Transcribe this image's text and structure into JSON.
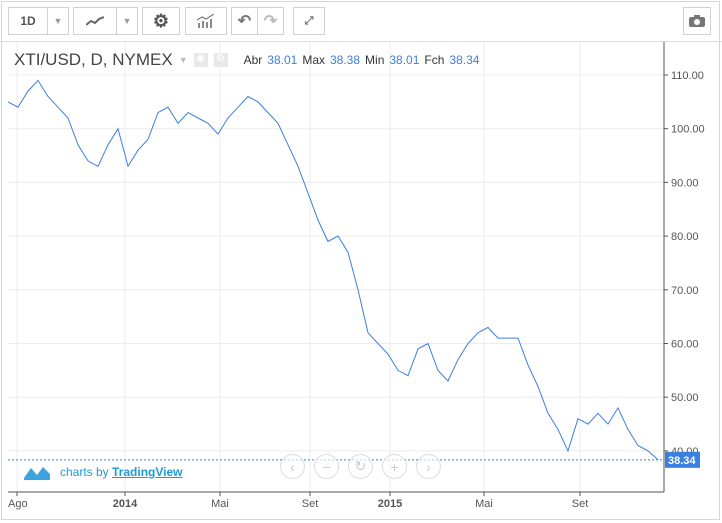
{
  "toolbar": {
    "interval": "1D"
  },
  "header": {
    "symbol": "XTI/USD, D, NYMEX",
    "open_label": "Abr",
    "open": "38.01",
    "high_label": "Max",
    "high": "38.38",
    "low_label": "Min",
    "low": "38.01",
    "close_label": "Fch",
    "close": "38.34"
  },
  "branding": {
    "prefix": "charts by",
    "name": "TradingView"
  },
  "chart_data": {
    "type": "line",
    "title": "XTI/USD, D, NYMEX",
    "start_date": "2013-07-26",
    "interval_days": 13,
    "values": [
      105,
      104,
      107,
      109,
      106,
      104,
      102,
      97,
      94,
      93,
      97,
      100,
      93,
      96,
      98,
      103,
      104,
      101,
      103,
      102,
      101,
      99,
      102,
      104,
      106,
      105,
      103,
      101,
      97,
      93,
      88,
      83,
      79,
      80,
      77,
      70,
      62,
      60,
      58,
      55,
      54,
      59,
      60,
      55,
      53,
      57,
      60,
      62,
      63,
      61,
      61,
      61,
      56,
      52,
      47,
      44,
      40,
      46,
      45,
      47,
      45,
      48,
      44,
      41,
      40,
      38.34
    ],
    "ylim": [
      35,
      115
    ],
    "yticks": [
      "110.00",
      "100.00",
      "90.00",
      "80.00",
      "70.00",
      "60.00",
      "50.00",
      "40.00"
    ],
    "xticks": [
      "Ago",
      "2014",
      "Mai",
      "Set",
      "2015",
      "Mai",
      "Set"
    ],
    "last_price": "38.34",
    "line_color": "#3b7fe0",
    "grid": true
  }
}
